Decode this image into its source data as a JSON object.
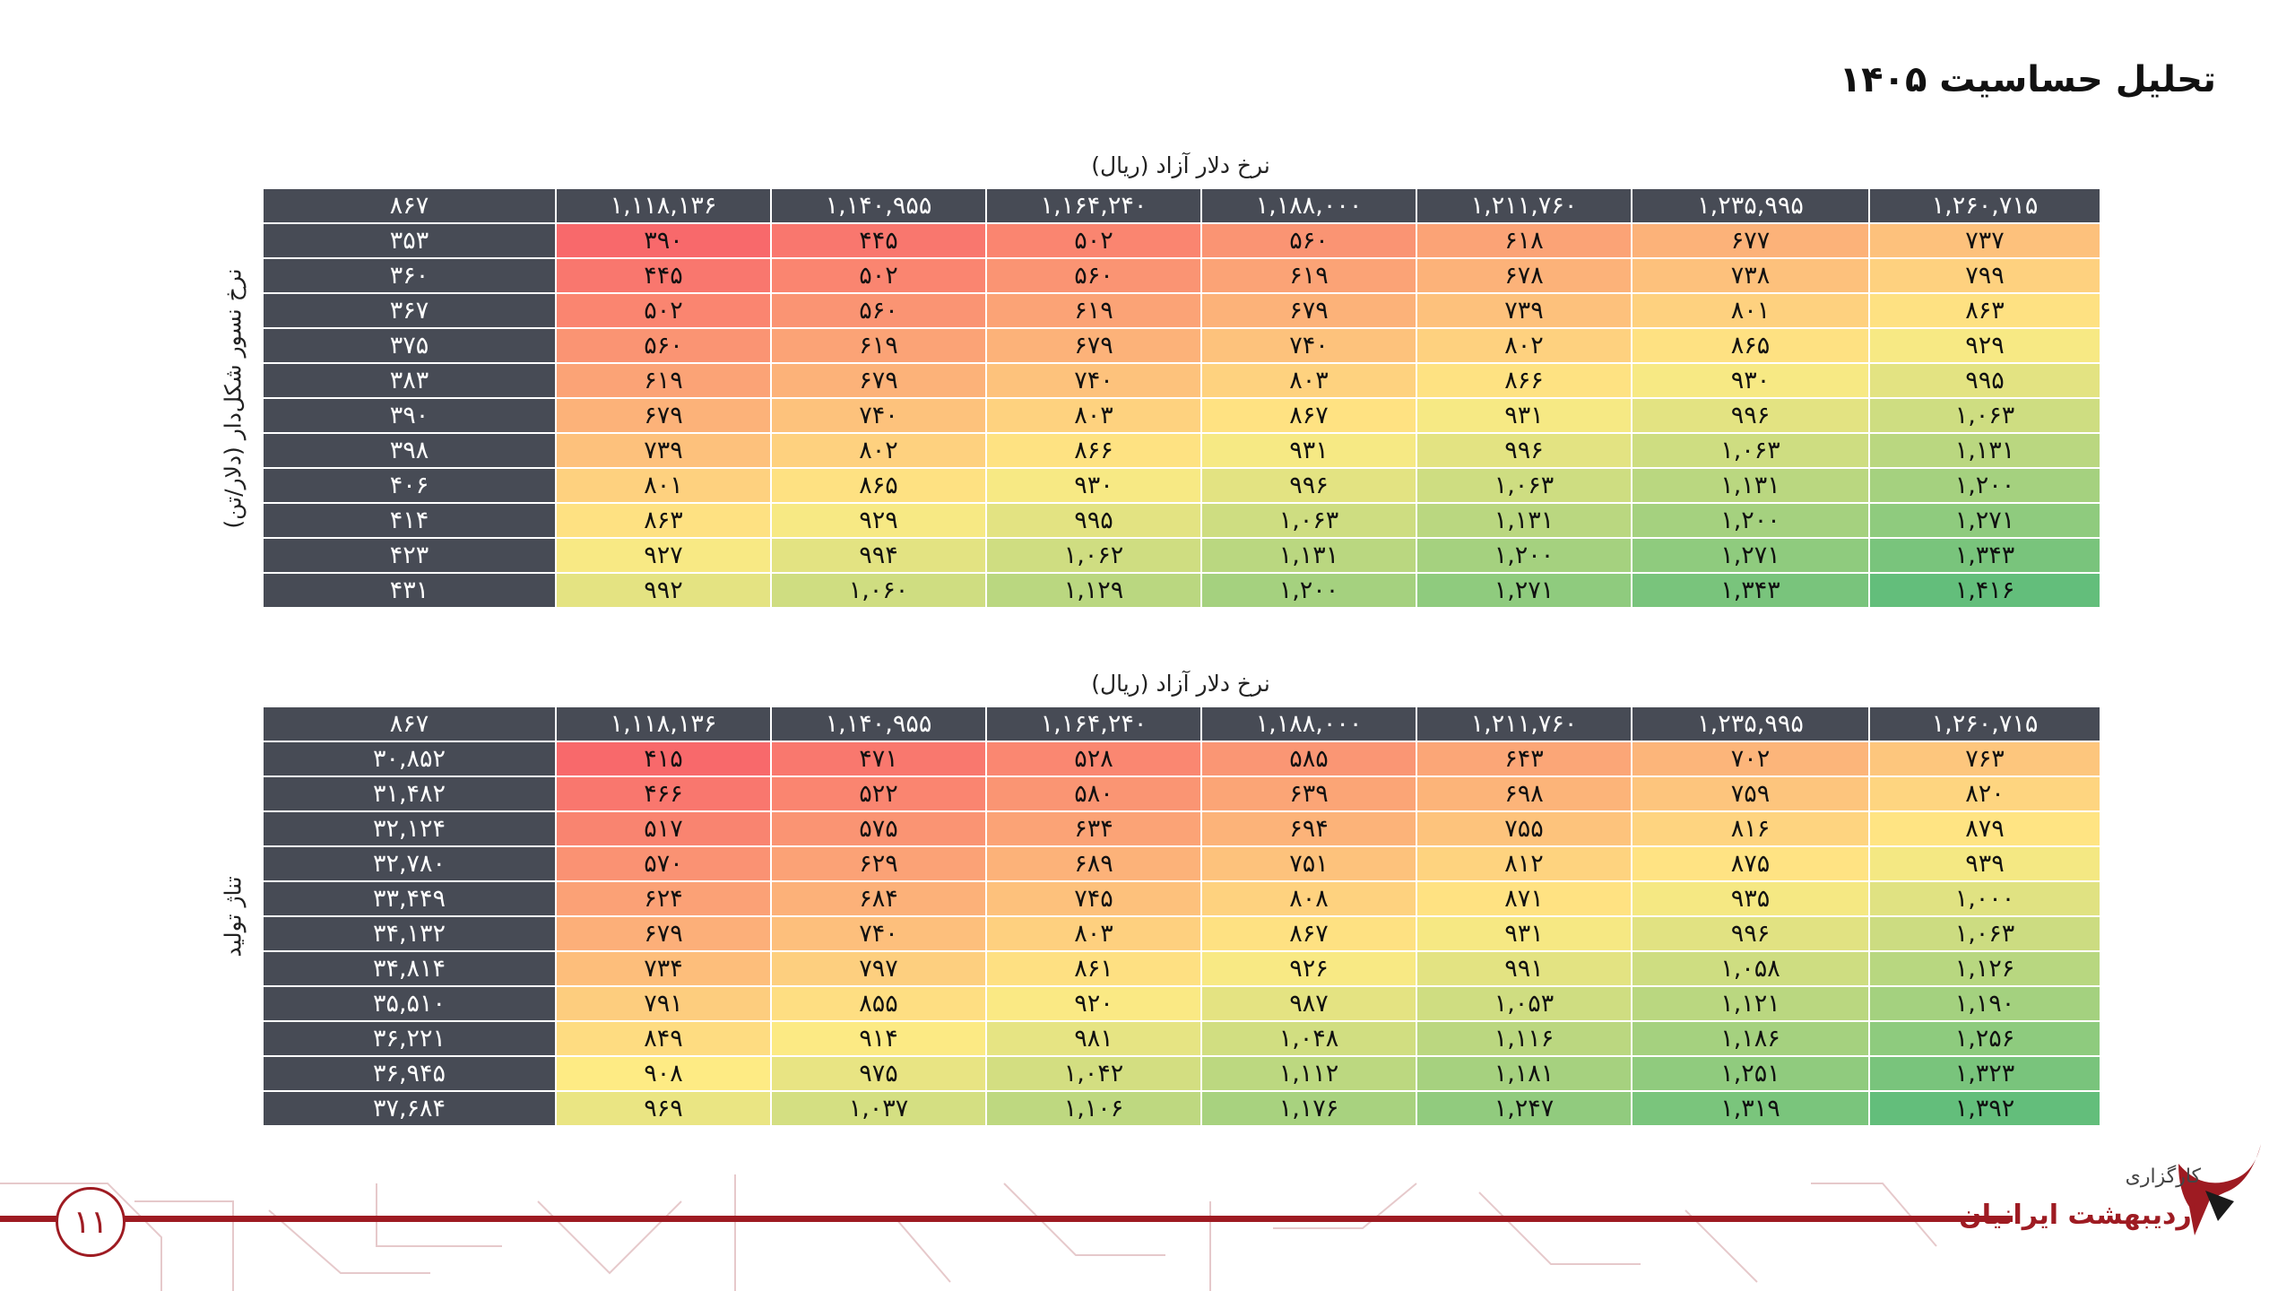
{
  "title": "تحلیل حساسیت ۱۴۰۵",
  "table1": {
    "axis_top": "نرخ دلار آزاد (ریال)",
    "axis_side": "نرخ نسور شکل‌دار (دلار/تن)",
    "corner": "۸۶۷",
    "columns": [
      "۱,۱۱۸,۱۳۶",
      "۱,۱۴۰,۹۵۵",
      "۱,۱۶۴,۲۴۰",
      "۱,۱۸۸,۰۰۰",
      "۱,۲۱۱,۷۶۰",
      "۱,۲۳۵,۹۹۵",
      "۱,۲۶۰,۷۱۵"
    ],
    "rows": [
      {
        "label": "۳۵۳",
        "values": [
          "۳۹۰",
          "۴۴۵",
          "۵۰۲",
          "۵۶۰",
          "۶۱۸",
          "۶۷۷",
          "۷۳۷"
        ]
      },
      {
        "label": "۳۶۰",
        "values": [
          "۴۴۵",
          "۵۰۲",
          "۵۶۰",
          "۶۱۹",
          "۶۷۸",
          "۷۳۸",
          "۷۹۹"
        ]
      },
      {
        "label": "۳۶۷",
        "values": [
          "۵۰۲",
          "۵۶۰",
          "۶۱۹",
          "۶۷۹",
          "۷۳۹",
          "۸۰۱",
          "۸۶۳"
        ]
      },
      {
        "label": "۳۷۵",
        "values": [
          "۵۶۰",
          "۶۱۹",
          "۶۷۹",
          "۷۴۰",
          "۸۰۲",
          "۸۶۵",
          "۹۲۹"
        ]
      },
      {
        "label": "۳۸۳",
        "values": [
          "۶۱۹",
          "۶۷۹",
          "۷۴۰",
          "۸۰۳",
          "۸۶۶",
          "۹۳۰",
          "۹۹۵"
        ]
      },
      {
        "label": "۳۹۰",
        "values": [
          "۶۷۹",
          "۷۴۰",
          "۸۰۳",
          "۸۶۷",
          "۹۳۱",
          "۹۹۶",
          "۱,۰۶۳"
        ]
      },
      {
        "label": "۳۹۸",
        "values": [
          "۷۳۹",
          "۸۰۲",
          "۸۶۶",
          "۹۳۱",
          "۹۹۶",
          "۱,۰۶۳",
          "۱,۱۳۱"
        ]
      },
      {
        "label": "۴۰۶",
        "values": [
          "۸۰۱",
          "۸۶۵",
          "۹۳۰",
          "۹۹۶",
          "۱,۰۶۳",
          "۱,۱۳۱",
          "۱,۲۰۰"
        ]
      },
      {
        "label": "۴۱۴",
        "values": [
          "۸۶۳",
          "۹۲۹",
          "۹۹۵",
          "۱,۰۶۳",
          "۱,۱۳۱",
          "۱,۲۰۰",
          "۱,۲۷۱"
        ]
      },
      {
        "label": "۴۲۳",
        "values": [
          "۹۲۷",
          "۹۹۴",
          "۱,۰۶۲",
          "۱,۱۳۱",
          "۱,۲۰۰",
          "۱,۲۷۱",
          "۱,۳۴۳"
        ]
      },
      {
        "label": "۴۳۱",
        "values": [
          "۹۹۲",
          "۱,۰۶۰",
          "۱,۱۲۹",
          "۱,۲۰۰",
          "۱,۲۷۱",
          "۱,۳۴۳",
          "۱,۴۱۶"
        ]
      }
    ],
    "numeric": [
      [
        390,
        445,
        502,
        560,
        618,
        677,
        737
      ],
      [
        445,
        502,
        560,
        619,
        678,
        738,
        799
      ],
      [
        502,
        560,
        619,
        679,
        739,
        801,
        863
      ],
      [
        560,
        619,
        679,
        740,
        802,
        865,
        929
      ],
      [
        619,
        679,
        740,
        803,
        866,
        930,
        995
      ],
      [
        679,
        740,
        803,
        867,
        931,
        996,
        1063
      ],
      [
        739,
        802,
        866,
        931,
        996,
        1063,
        1131
      ],
      [
        801,
        865,
        930,
        996,
        1063,
        1131,
        1200
      ],
      [
        863,
        929,
        995,
        1063,
        1131,
        1200,
        1271
      ],
      [
        927,
        994,
        1062,
        1131,
        1200,
        1271,
        1343
      ],
      [
        992,
        1060,
        1129,
        1200,
        1271,
        1343,
        1416
      ]
    ]
  },
  "table2": {
    "axis_top": "نرخ دلار آزاد (ریال)",
    "axis_side": "تناژ تولید",
    "corner": "۸۶۷",
    "columns": [
      "۱,۱۱۸,۱۳۶",
      "۱,۱۴۰,۹۵۵",
      "۱,۱۶۴,۲۴۰",
      "۱,۱۸۸,۰۰۰",
      "۱,۲۱۱,۷۶۰",
      "۱,۲۳۵,۹۹۵",
      "۱,۲۶۰,۷۱۵"
    ],
    "rows": [
      {
        "label": "۳۰,۸۵۲",
        "values": [
          "۴۱۵",
          "۴۷۱",
          "۵۲۸",
          "۵۸۵",
          "۶۴۳",
          "۷۰۲",
          "۷۶۳"
        ]
      },
      {
        "label": "۳۱,۴۸۲",
        "values": [
          "۴۶۶",
          "۵۲۲",
          "۵۸۰",
          "۶۳۹",
          "۶۹۸",
          "۷۵۹",
          "۸۲۰"
        ]
      },
      {
        "label": "۳۲,۱۲۴",
        "values": [
          "۵۱۷",
          "۵۷۵",
          "۶۳۴",
          "۶۹۴",
          "۷۵۵",
          "۸۱۶",
          "۸۷۹"
        ]
      },
      {
        "label": "۳۲,۷۸۰",
        "values": [
          "۵۷۰",
          "۶۲۹",
          "۶۸۹",
          "۷۵۱",
          "۸۱۲",
          "۸۷۵",
          "۹۳۹"
        ]
      },
      {
        "label": "۳۳,۴۴۹",
        "values": [
          "۶۲۴",
          "۶۸۴",
          "۷۴۵",
          "۸۰۸",
          "۸۷۱",
          "۹۳۵",
          "۱,۰۰۰"
        ]
      },
      {
        "label": "۳۴,۱۳۲",
        "values": [
          "۶۷۹",
          "۷۴۰",
          "۸۰۳",
          "۸۶۷",
          "۹۳۱",
          "۹۹۶",
          "۱,۰۶۳"
        ]
      },
      {
        "label": "۳۴,۸۱۴",
        "values": [
          "۷۳۴",
          "۷۹۷",
          "۸۶۱",
          "۹۲۶",
          "۹۹۱",
          "۱,۰۵۸",
          "۱,۱۲۶"
        ]
      },
      {
        "label": "۳۵,۵۱۰",
        "values": [
          "۷۹۱",
          "۸۵۵",
          "۹۲۰",
          "۹۸۷",
          "۱,۰۵۳",
          "۱,۱۲۱",
          "۱,۱۹۰"
        ]
      },
      {
        "label": "۳۶,۲۲۱",
        "values": [
          "۸۴۹",
          "۹۱۴",
          "۹۸۱",
          "۱,۰۴۸",
          "۱,۱۱۶",
          "۱,۱۸۶",
          "۱,۲۵۶"
        ]
      },
      {
        "label": "۳۶,۹۴۵",
        "values": [
          "۹۰۸",
          "۹۷۵",
          "۱,۰۴۲",
          "۱,۱۱۲",
          "۱,۱۸۱",
          "۱,۲۵۱",
          "۱,۳۲۳"
        ]
      },
      {
        "label": "۳۷,۶۸۴",
        "values": [
          "۹۶۹",
          "۱,۰۳۷",
          "۱,۱۰۶",
          "۱,۱۷۶",
          "۱,۲۴۷",
          "۱,۳۱۹",
          "۱,۳۹۲"
        ]
      }
    ],
    "numeric": [
      [
        415,
        471,
        528,
        585,
        643,
        702,
        763
      ],
      [
        466,
        522,
        580,
        639,
        698,
        759,
        820
      ],
      [
        517,
        575,
        634,
        694,
        755,
        816,
        879
      ],
      [
        570,
        629,
        689,
        751,
        812,
        875,
        939
      ],
      [
        624,
        684,
        745,
        808,
        871,
        935,
        1000
      ],
      [
        679,
        740,
        803,
        867,
        931,
        996,
        1063
      ],
      [
        734,
        797,
        861,
        926,
        991,
        1058,
        1126
      ],
      [
        791,
        855,
        920,
        987,
        1053,
        1121,
        1190
      ],
      [
        849,
        914,
        981,
        1048,
        1116,
        1186,
        1256
      ],
      [
        908,
        975,
        1042,
        1112,
        1181,
        1251,
        1323
      ],
      [
        969,
        1037,
        1106,
        1176,
        1247,
        1319,
        1392
      ]
    ]
  },
  "colors": {
    "low": "#f8696b",
    "mid": "#ffeb84",
    "high": "#63be7b",
    "header_bg": "#474b55",
    "brand": "#9e1b22"
  },
  "footer": {
    "page_number": "۱۱",
    "logo_small": "کارگزاری",
    "logo_big": "اردیبهشت ایرانیان"
  }
}
